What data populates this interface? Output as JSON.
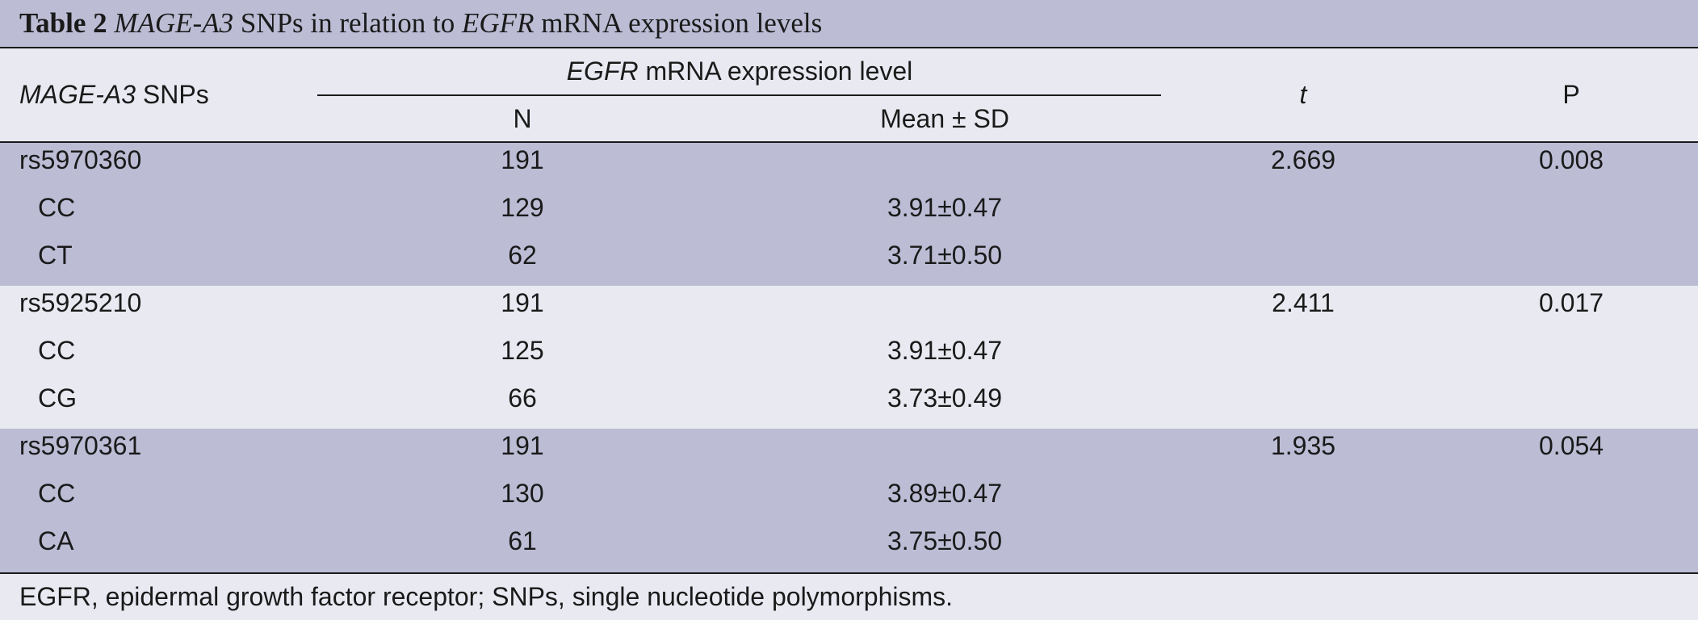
{
  "title": {
    "label": "Table 2",
    "gene1": "MAGE-A3",
    "middle": " SNPs in relation to ",
    "gene2": "EGFR",
    "rest": " mRNA expression levels"
  },
  "header": {
    "snp_italic": "MAGE-A3",
    "snp_rest": " SNPs",
    "group_italic": "EGFR",
    "group_rest": " mRNA expression level",
    "col_n": "N",
    "col_mean": "Mean ± SD",
    "col_t": "t",
    "col_p": "P"
  },
  "groups": [
    {
      "rows": [
        {
          "name": "rs5970360",
          "n": "191",
          "mean": "",
          "t": "2.669",
          "p": "0.008"
        },
        {
          "name": "CC",
          "n": "129",
          "mean": "3.91±0.47",
          "t": "",
          "p": ""
        },
        {
          "name": "CT",
          "n": "62",
          "mean": "3.71±0.50",
          "t": "",
          "p": ""
        }
      ]
    },
    {
      "rows": [
        {
          "name": "rs5925210",
          "n": "191",
          "mean": "",
          "t": "2.411",
          "p": "0.017"
        },
        {
          "name": "CC",
          "n": "125",
          "mean": "3.91±0.47",
          "t": "",
          "p": ""
        },
        {
          "name": "CG",
          "n": "66",
          "mean": "3.73±0.49",
          "t": "",
          "p": ""
        }
      ]
    },
    {
      "rows": [
        {
          "name": "rs5970361",
          "n": "191",
          "mean": "",
          "t": "1.935",
          "p": "0.054"
        },
        {
          "name": "CC",
          "n": "130",
          "mean": "3.89±0.47",
          "t": "",
          "p": ""
        },
        {
          "name": "CA",
          "n": "61",
          "mean": "3.75±0.50",
          "t": "",
          "p": ""
        }
      ]
    }
  ],
  "footnote": "EGFR, epidermal growth factor receptor; SNPs, single nucleotide polymorphisms.",
  "colors": {
    "band_dark": "#bcbcd5",
    "band_light": "#e9e9f2",
    "rule": "#1a1a1a"
  }
}
